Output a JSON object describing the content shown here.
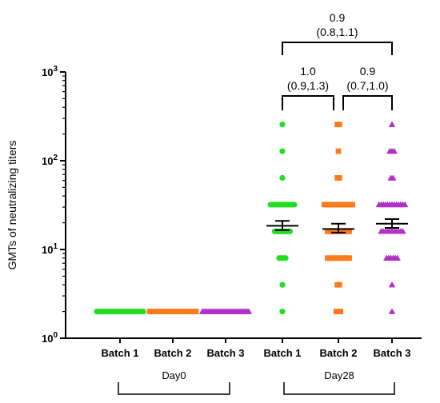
{
  "chart_data": {
    "type": "scatter",
    "ylabel": "GMTs of  neutralizing titers",
    "yscale": "log",
    "ylim": [
      1,
      1000
    ],
    "yticks": [
      {
        "value": 1,
        "base": "10",
        "exp": "0"
      },
      {
        "value": 10,
        "base": "10",
        "exp": "1"
      },
      {
        "value": 100,
        "base": "10",
        "exp": "2"
      },
      {
        "value": 1000,
        "base": "10",
        "exp": "3"
      }
    ],
    "categories": [
      "Batch 1",
      "Batch 2",
      "Batch 3",
      "Batch 1",
      "Batch 2",
      "Batch 3"
    ],
    "groups": [
      {
        "label": "Day0",
        "categories": [
          0,
          1,
          2
        ]
      },
      {
        "label": "Day28",
        "categories": [
          3,
          4,
          5
        ]
      }
    ],
    "series": [
      {
        "category": 0,
        "color": "#22dd22",
        "marker": "circle",
        "points": [
          {
            "value": 2,
            "count": 30
          }
        ]
      },
      {
        "category": 1,
        "color": "#ff7a1a",
        "marker": "square",
        "points": [
          {
            "value": 2,
            "count": 30
          }
        ]
      },
      {
        "category": 2,
        "color": "#b030c8",
        "marker": "triangle",
        "points": [
          {
            "value": 2,
            "count": 30
          }
        ]
      },
      {
        "category": 3,
        "color": "#22dd22",
        "marker": "circle",
        "gmt": 18.5,
        "ci": [
          16.5,
          21
        ],
        "points": [
          {
            "value": 256,
            "count": 1
          },
          {
            "value": 128,
            "count": 1
          },
          {
            "value": 64,
            "count": 1
          },
          {
            "value": 32,
            "count": 12
          },
          {
            "value": 16,
            "count": 8
          },
          {
            "value": 8,
            "count": 4
          },
          {
            "value": 4,
            "count": 1
          },
          {
            "value": 2,
            "count": 1
          }
        ]
      },
      {
        "category": 4,
        "color": "#ff7a1a",
        "marker": "square",
        "gmt": 17,
        "ci": [
          15.5,
          19.5
        ],
        "points": [
          {
            "value": 256,
            "count": 2
          },
          {
            "value": 128,
            "count": 1
          },
          {
            "value": 64,
            "count": 2
          },
          {
            "value": 32,
            "count": 14
          },
          {
            "value": 16,
            "count": 11
          },
          {
            "value": 8,
            "count": 11
          },
          {
            "value": 4,
            "count": 2
          },
          {
            "value": 2,
            "count": 3
          }
        ]
      },
      {
        "category": 5,
        "color": "#b030c8",
        "marker": "triangle",
        "gmt": 19.5,
        "ci": [
          17.5,
          22
        ],
        "points": [
          {
            "value": 256,
            "count": 1
          },
          {
            "value": 128,
            "count": 3
          },
          {
            "value": 64,
            "count": 2
          },
          {
            "value": 32,
            "count": 13
          },
          {
            "value": 16,
            "count": 11
          },
          {
            "value": 8,
            "count": 6
          },
          {
            "value": 4,
            "count": 1
          },
          {
            "value": 2,
            "count": 1
          }
        ]
      }
    ],
    "comparisons": [
      {
        "from": 3,
        "to": 4,
        "ratio": "1.0",
        "ci": "(0.9,1.3)"
      },
      {
        "from": 4,
        "to": 5,
        "ratio": "0.9",
        "ci": "(0.7,1.0)"
      },
      {
        "from": 3,
        "to": 5,
        "ratio": "0.9",
        "ci": "(0.8,1.1)"
      }
    ]
  }
}
